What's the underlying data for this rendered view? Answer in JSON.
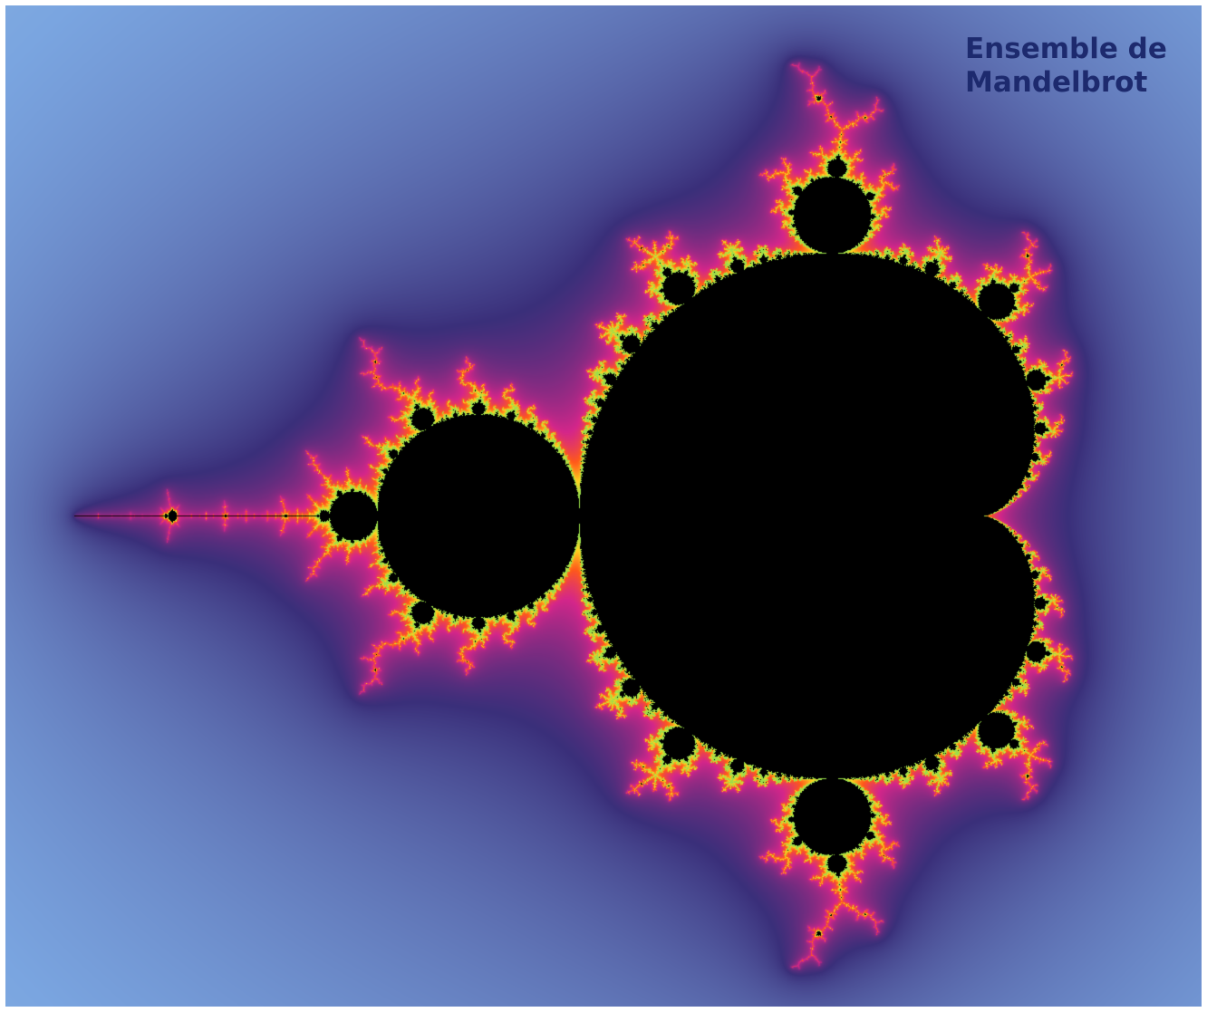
{
  "title": {
    "line1": "Ensemble de",
    "line2": "Mandelbrot"
  },
  "image": {
    "subject": "mandelbrot-set-fractal",
    "palette": {
      "set": "#000000",
      "boundary_inner": "#9adf4a",
      "boundary_mid": "#ffd21f",
      "boundary_outer": "#ff5a1a",
      "glow": "#d4268a",
      "halo": "#3a2f7a",
      "mid_field": "#7aa5e0",
      "far_field": "#bfe2e6"
    }
  }
}
